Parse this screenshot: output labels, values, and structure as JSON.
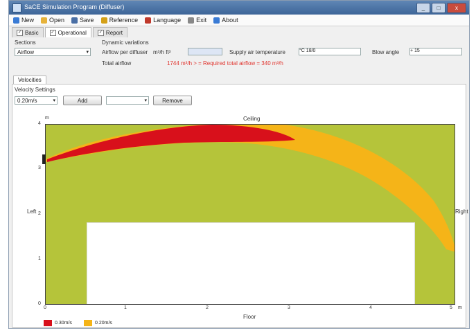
{
  "window": {
    "title": "SaCE Simulation Program (Diffuser)",
    "buttons": [
      "_",
      "□",
      "x"
    ]
  },
  "menu": {
    "items": [
      {
        "label": "New",
        "icon": "new-file-icon",
        "color": "#3a7bd5"
      },
      {
        "label": "Open",
        "icon": "open-folder-icon",
        "color": "#e6b23a"
      },
      {
        "label": "Save",
        "icon": "save-icon",
        "color": "#4a6fa5"
      },
      {
        "label": "Reference",
        "icon": "reference-icon",
        "color": "#d4a017"
      },
      {
        "label": "Language",
        "icon": "language-flag-icon",
        "color": "#c0392b"
      },
      {
        "label": "Exit",
        "icon": "exit-icon",
        "color": "#888888"
      },
      {
        "label": "About",
        "icon": "about-icon",
        "color": "#3a7bd5"
      }
    ]
  },
  "tabs": [
    {
      "label": "Basic",
      "checked": true
    },
    {
      "label": "Operational",
      "checked": true
    },
    {
      "label": "Report",
      "checked": true
    }
  ],
  "form": {
    "sections_label": "Sections",
    "section_value": "Airflow",
    "dynamic_label": "Dynamic variations",
    "airflow_label": "Airflow per diffuser",
    "airflow_unit": "m³/h  ft³",
    "airflow_value": "",
    "supply_temp_label": "Supply air temperature",
    "supply_temp_unit": "°C  18/0",
    "blow_angle_label": "Blow angle",
    "blow_angle_value": "+ 15",
    "total_airflow_label": "Total airflow",
    "total_airflow_text": "1744 m³/h  > = Required total airflow = 340 m³/h"
  },
  "subtab": {
    "label": "Velocities"
  },
  "velocity": {
    "settings_label": "Velocity Settings",
    "select_value": "0.20m/s",
    "add_label": "Add",
    "second_select": "",
    "remove_label": "Remove"
  },
  "plot": {
    "ceiling_label": "Ceiling",
    "floor_label": "Floor",
    "left_label": "Left",
    "right_label": "Right",
    "y_unit": "m",
    "x_unit": "m",
    "y_ticks": [
      "4",
      "3",
      "2",
      "1",
      "0"
    ],
    "x_ticks": [
      "0",
      "1",
      "2",
      "3",
      "4",
      "5"
    ],
    "background_color": "#b5c43a"
  },
  "legend": [
    {
      "label": "0.30m/s",
      "color": "#d8101b"
    },
    {
      "label": "0.20m/s",
      "color": "#f5b418"
    }
  ]
}
